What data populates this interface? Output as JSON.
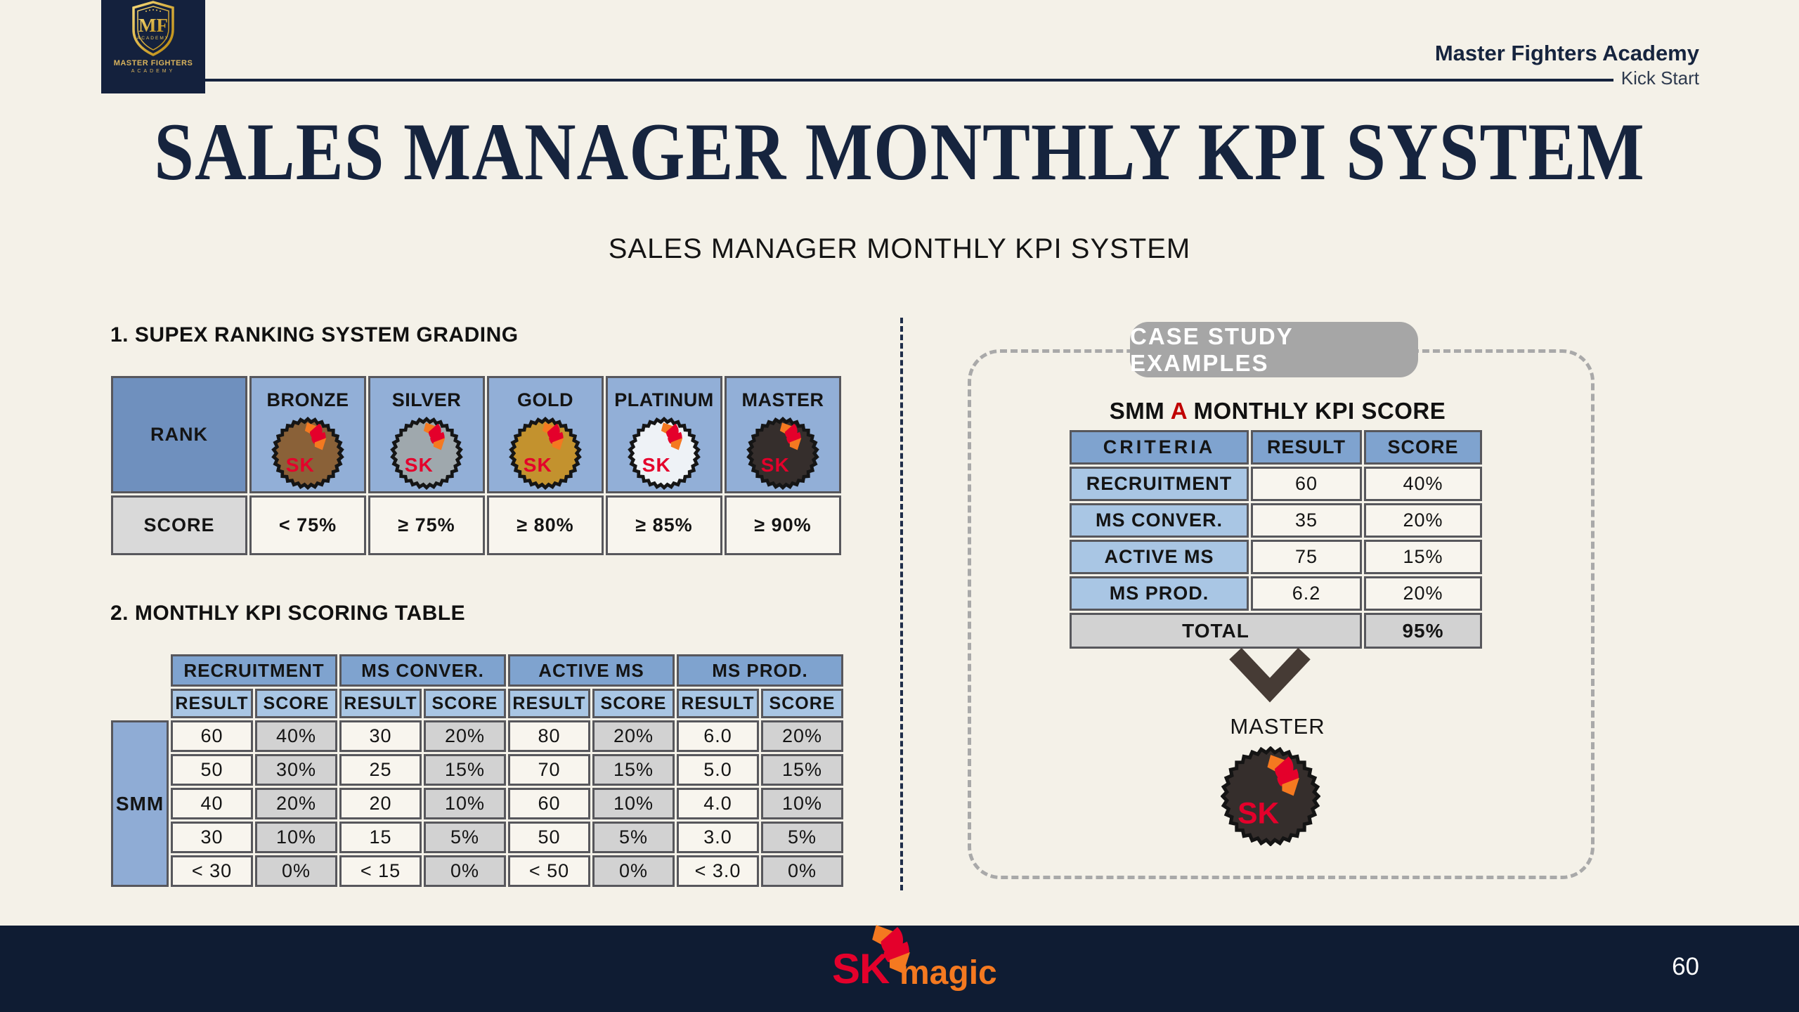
{
  "header": {
    "logo": {
      "monogram": "MF",
      "shield_caption": "ACADEMY",
      "name": "MASTER FIGHTERS",
      "name_sub": "ACADEMY"
    },
    "brand_title": "Master Fighters Academy",
    "brand_subtitle": "Kick Start"
  },
  "title": "SALES MANAGER MONTHLY KPI SYSTEM",
  "subtitle": "SALES MANAGER MONTHLY KPI SYSTEM",
  "section1": {
    "heading": "1. SUPEX RANKING SYSTEM GRADING",
    "table": {
      "rank_label": "RANK",
      "score_label": "SCORE",
      "ranks": [
        {
          "name": "BRONZE",
          "score": "< 75%",
          "badge_color": "#8A6138"
        },
        {
          "name": "SILVER",
          "score": "≥ 75%",
          "badge_color": "#9FA8AD"
        },
        {
          "name": "GOLD",
          "score": "≥ 80%",
          "badge_color": "#C3922E"
        },
        {
          "name": "PLATINUM",
          "score": "≥ 85%",
          "badge_color": "#EEF2F6"
        },
        {
          "name": "MASTER",
          "score": "≥ 90%",
          "badge_color": "#352E2C"
        }
      ]
    }
  },
  "section2": {
    "heading": "2. MONTHLY KPI SCORING TABLE",
    "table": {
      "row_label": "SMM",
      "groups": [
        "RECRUITMENT",
        "MS CONVER.",
        "ACTIVE MS",
        "MS PROD."
      ],
      "sub_headers": [
        "RESULT",
        "SCORE"
      ],
      "rows": [
        [
          "60",
          "40%",
          "30",
          "20%",
          "80",
          "20%",
          "6.0",
          "20%"
        ],
        [
          "50",
          "30%",
          "25",
          "15%",
          "70",
          "15%",
          "5.0",
          "15%"
        ],
        [
          "40",
          "20%",
          "20",
          "10%",
          "60",
          "10%",
          "4.0",
          "10%"
        ],
        [
          "30",
          "10%",
          "15",
          "5%",
          "50",
          "5%",
          "3.0",
          "5%"
        ],
        [
          "< 30",
          "0%",
          "< 15",
          "0%",
          "< 50",
          "0%",
          "< 3.0",
          "0%"
        ]
      ]
    }
  },
  "case_study": {
    "badge": "CASE STUDY EXAMPLES",
    "title": {
      "pre": "SMM ",
      "highlight": "A",
      "post": " MONTHLY KPI SCORE"
    },
    "table": {
      "headers": [
        "CRITERIA",
        "RESULT",
        "SCORE"
      ],
      "rows": [
        {
          "criteria": "RECRUITMENT",
          "result": "60",
          "score": "40%"
        },
        {
          "criteria": "MS CONVER.",
          "result": "35",
          "score": "20%"
        },
        {
          "criteria": "ACTIVE MS",
          "result": "75",
          "score": "15%"
        },
        {
          "criteria": "MS PROD.",
          "result": "6.2",
          "score": "20%"
        }
      ],
      "total_label": "TOTAL",
      "total_value": "95%"
    },
    "result_rank": "MASTER"
  },
  "footer": {
    "brand_sk": "SK",
    "brand_magic": "magic",
    "page_number": "60"
  },
  "colors": {
    "background": "#F4F1E8",
    "navy": "#16243E",
    "footer_navy": "#0F1C33",
    "table_border": "#57575C",
    "header_blue": "#7FA3CF",
    "light_blue": "#A9C6E4",
    "medal_cell_blue": "#92AFD7",
    "rank_blue": "#6F90BE",
    "smm_blue": "#8FACD5",
    "gray_cell": "#D2D2D2",
    "cream_cell": "#F8F5EE",
    "accent_red": "#C00000",
    "sk_red": "#E4002B",
    "sk_orange": "#F47920",
    "badge_gray": "#A6A6A6",
    "chevron_brown": "#463B35",
    "gold": "#D9B35C"
  }
}
